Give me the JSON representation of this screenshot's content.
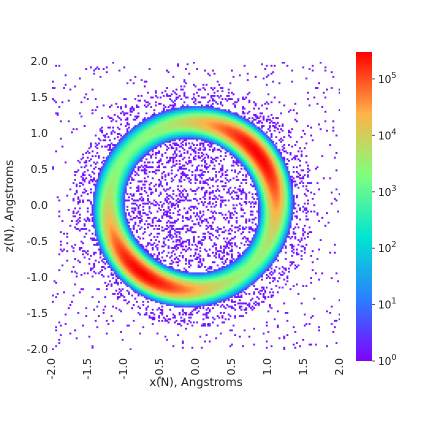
{
  "chart_data": {
    "type": "heatmap",
    "title": "",
    "xlabel": "x(N), Angstroms",
    "ylabel": "z(N), Angstroms",
    "xlim": [
      -2.0,
      2.0
    ],
    "ylim": [
      -2.0,
      2.0
    ],
    "x_ticks": [
      "-2.0",
      "-1.5",
      "-1.0",
      "-0.5",
      "0.0",
      "0.5",
      "1.0",
      "1.5",
      "2.0"
    ],
    "y_ticks": [
      "-2.0",
      "-1.5",
      "-1.0",
      "-0.5",
      "0.0",
      "0.5",
      "1.0",
      "1.5",
      "2.0"
    ],
    "colorbar": {
      "scale": "log",
      "range": [
        1,
        300000
      ],
      "tick_labels": [
        {
          "base": "10",
          "exp": "0"
        },
        {
          "base": "10",
          "exp": "1"
        },
        {
          "base": "10",
          "exp": "2"
        },
        {
          "base": "10",
          "exp": "3"
        },
        {
          "base": "10",
          "exp": "4"
        },
        {
          "base": "10",
          "exp": "5"
        }
      ],
      "colormap": "rainbow",
      "colors": [
        "#8000ff",
        "#2a7fff",
        "#00e5d0",
        "#7fff7f",
        "#ffb347",
        "#ff0000"
      ]
    },
    "grid": false,
    "distribution": {
      "shape": "ring",
      "center": [
        -0.05,
        0.0
      ],
      "ring_radius_x": 1.25,
      "ring_radius_z": 1.25,
      "peak_count": 300000,
      "bright_arcs": [
        {
          "from_point": [
            0.3,
            1.05
          ],
          "to_point": [
            1.0,
            0.1
          ],
          "peak": 300000
        },
        {
          "from_point": [
            -1.25,
            -0.5
          ],
          "to_point": [
            -0.2,
            -1.25
          ],
          "peak": 300000
        }
      ],
      "background_count": 1
    }
  }
}
